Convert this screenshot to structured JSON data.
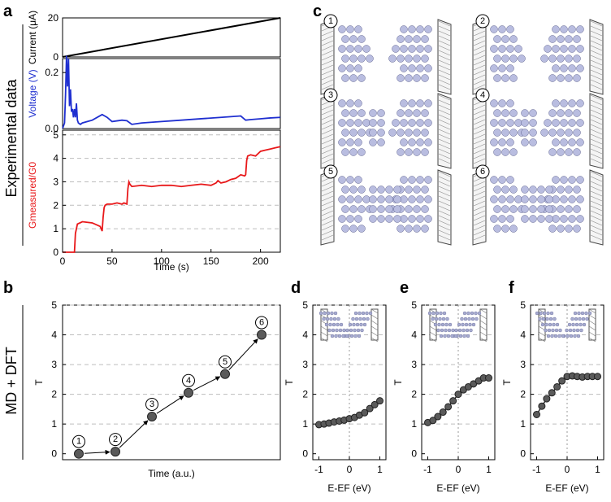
{
  "panels": {
    "a": "a",
    "b": "b",
    "c": "c",
    "d": "d",
    "e": "e",
    "f": "f"
  },
  "row_labels": {
    "experimental": "Experimental data",
    "simulation": "MD + DFT"
  },
  "chart_data": [
    {
      "id": "a-current",
      "type": "line",
      "ylabel": "Current (μA)",
      "ylim": [
        0,
        20
      ],
      "yticks": [
        "0",
        "20"
      ],
      "color": "#000000",
      "x": [
        0,
        220
      ],
      "values": [
        0,
        20
      ]
    },
    {
      "id": "a-voltage",
      "type": "line",
      "ylabel": "Voltage (V)",
      "ylim": [
        0,
        0.25
      ],
      "yticks": [
        "0.0",
        "0.2"
      ],
      "color": "#1f2fd0",
      "x": [
        0,
        2,
        3,
        4,
        5,
        6,
        7,
        8,
        9,
        10,
        11,
        12,
        13,
        14,
        15,
        16,
        18,
        20,
        25,
        30,
        40,
        45,
        50,
        60,
        65,
        70,
        80,
        100,
        120,
        140,
        160,
        180,
        185,
        190,
        200,
        210,
        220
      ],
      "values": [
        0,
        0.02,
        0.12,
        0.26,
        0.15,
        0.25,
        0.08,
        0.14,
        0.06,
        0.07,
        0.04,
        0.07,
        0.04,
        0.09,
        0.03,
        0.02,
        0.015,
        0.02,
        0.025,
        0.03,
        0.05,
        0.04,
        0.025,
        0.03,
        0.028,
        0.015,
        0.02,
        0.025,
        0.03,
        0.035,
        0.04,
        0.045,
        0.03,
        0.032,
        0.035,
        0.038,
        0.04
      ]
    },
    {
      "id": "a-conductance",
      "type": "line",
      "ylabel": "Gmeasured/G0",
      "ylim": [
        0,
        5.2
      ],
      "yticks": [
        "0",
        "1",
        "2",
        "3",
        "4",
        "5"
      ],
      "xlim": [
        0,
        220
      ],
      "xticks": [
        "0",
        "50",
        "100",
        "150",
        "200"
      ],
      "xlabel": "Time (s)",
      "color": "#e8181a",
      "x": [
        0,
        12,
        13,
        15,
        20,
        30,
        38,
        40,
        41,
        42,
        43,
        45,
        50,
        55,
        60,
        62,
        65,
        66,
        67,
        68,
        70,
        80,
        90,
        100,
        110,
        120,
        130,
        140,
        150,
        155,
        157,
        160,
        165,
        170,
        175,
        180,
        184,
        185,
        186,
        187,
        190,
        195,
        200,
        205,
        210,
        215,
        220
      ],
      "values": [
        0,
        0,
        0.8,
        1.2,
        1.3,
        1.25,
        1.1,
        0.9,
        1.5,
        1.9,
        2.0,
        2.05,
        2.05,
        2.1,
        2.05,
        2.1,
        2.05,
        2.7,
        3.0,
        2.9,
        2.8,
        2.85,
        2.8,
        2.85,
        2.85,
        2.8,
        2.85,
        2.9,
        2.85,
        2.95,
        3.05,
        2.95,
        3.0,
        3.1,
        3.15,
        3.3,
        3.25,
        3.3,
        3.9,
        4.1,
        4.15,
        4.1,
        4.3,
        4.35,
        4.4,
        4.45,
        4.5
      ]
    },
    {
      "id": "b",
      "type": "scatter",
      "ylabel": "T",
      "xlabel": "Time (a.u.)",
      "ylim": [
        -0.2,
        5
      ],
      "yticks": [
        "0",
        "1",
        "2",
        "3",
        "4",
        "5"
      ],
      "x": [
        1,
        2,
        3,
        4,
        5,
        6
      ],
      "values": [
        0.0,
        0.07,
        1.25,
        2.05,
        2.68,
        4.0
      ],
      "markers": [
        "1",
        "2",
        "3",
        "4",
        "5",
        "6"
      ]
    },
    {
      "id": "d",
      "type": "line",
      "ylabel": "T",
      "xlabel": "E-EF (eV)",
      "xlim": [
        -1.2,
        1.2
      ],
      "ylim": [
        -0.2,
        5
      ],
      "xticks": [
        "-1",
        "0",
        "1"
      ],
      "yticks": [
        "0",
        "1",
        "2",
        "3",
        "4",
        "5"
      ],
      "x": [
        -1,
        -0.83,
        -0.67,
        -0.5,
        -0.33,
        -0.17,
        0,
        0.17,
        0.33,
        0.5,
        0.67,
        0.83,
        1
      ],
      "values": [
        0.98,
        1.0,
        1.03,
        1.07,
        1.1,
        1.13,
        1.18,
        1.22,
        1.3,
        1.38,
        1.52,
        1.65,
        1.78
      ]
    },
    {
      "id": "e",
      "type": "line",
      "ylabel": "T",
      "xlabel": "E-EF (eV)",
      "xlim": [
        -1.2,
        1.2
      ],
      "ylim": [
        -0.2,
        5
      ],
      "xticks": [
        "-1",
        "0",
        "1"
      ],
      "yticks": [
        "0",
        "1",
        "2",
        "3",
        "4",
        "5"
      ],
      "x": [
        -1,
        -0.83,
        -0.67,
        -0.5,
        -0.33,
        -0.17,
        0,
        0.17,
        0.33,
        0.5,
        0.67,
        0.83,
        1
      ],
      "values": [
        1.05,
        1.12,
        1.25,
        1.4,
        1.58,
        1.78,
        2.0,
        2.15,
        2.25,
        2.35,
        2.45,
        2.55,
        2.55
      ]
    },
    {
      "id": "f",
      "type": "line",
      "ylabel": "T",
      "xlabel": "E-EF (eV)",
      "xlim": [
        -1.2,
        1.2
      ],
      "ylim": [
        -0.2,
        5
      ],
      "xticks": [
        "-1",
        "0",
        "1"
      ],
      "yticks": [
        "0",
        "1",
        "2",
        "3",
        "4",
        "5"
      ],
      "x": [
        -1,
        -0.83,
        -0.67,
        -0.5,
        -0.33,
        -0.17,
        0,
        0.17,
        0.33,
        0.5,
        0.67,
        0.83,
        1
      ],
      "values": [
        1.32,
        1.6,
        1.85,
        2.05,
        2.25,
        2.45,
        2.6,
        2.62,
        2.6,
        2.58,
        2.6,
        2.6,
        2.6
      ]
    }
  ],
  "snapshots": [
    "1",
    "2",
    "3",
    "4",
    "5",
    "6"
  ]
}
